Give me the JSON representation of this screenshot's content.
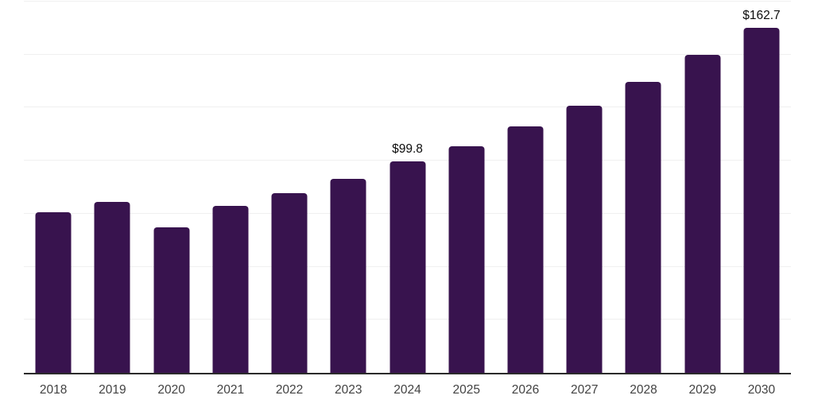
{
  "chart_data": {
    "type": "bar",
    "title": "",
    "xlabel": "",
    "ylabel": "",
    "categories": [
      "2018",
      "2019",
      "2020",
      "2021",
      "2022",
      "2023",
      "2024",
      "2025",
      "2026",
      "2027",
      "2028",
      "2029",
      "2030"
    ],
    "values": [
      75.7,
      80.5,
      68.4,
      78.6,
      84.8,
      91.5,
      99.8,
      106.9,
      116.1,
      126.0,
      137.3,
      150.0,
      162.7
    ],
    "data_labels": [
      "",
      "",
      "",
      "",
      "",
      "",
      "$99.8",
      "",
      "",
      "",
      "",
      "",
      "$162.7"
    ],
    "ylim": [
      0,
      175
    ],
    "gridline_values": [
      25,
      50,
      75,
      100,
      125,
      150,
      175
    ],
    "grid": true,
    "legend": "none",
    "y_axis_tick_labels_visible": false,
    "colors": {
      "bar": "#38134e",
      "gridline": "#f0f0f0",
      "axis_line": "#2b2b2b",
      "tick_label": "#424242",
      "data_label": "#0d0d0d",
      "background": "#ffffff"
    }
  }
}
